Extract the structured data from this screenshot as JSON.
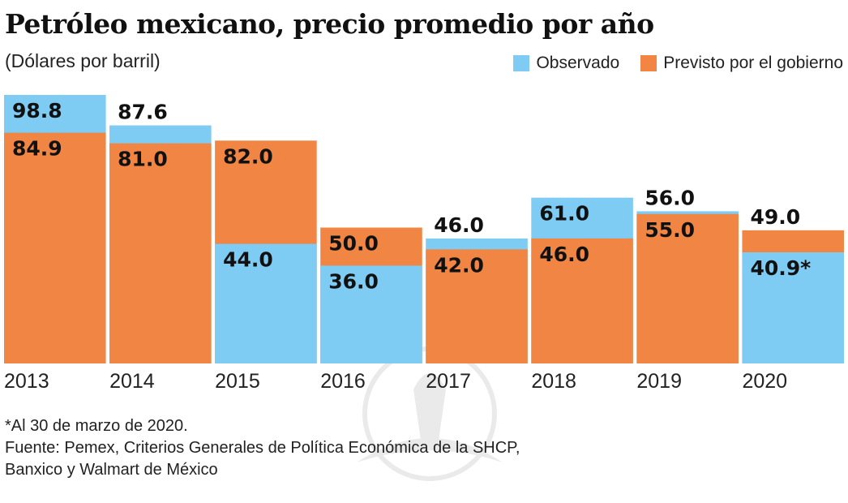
{
  "header": {
    "title": "Petróleo mexicano, precio promedio por año",
    "subtitle": "(Dólares por barril)"
  },
  "legend": [
    {
      "name": "Observado",
      "color": "#7ecbf3"
    },
    {
      "name": "Previsto por el gobierno",
      "color": "#f08544"
    }
  ],
  "notes": {
    "footnote": "*Al 30 de marzo de 2020.",
    "source_line1": "Fuente: Pemex, Criterios Generales de Política Económica de la SHCP,",
    "source_line2": "Banxico y Walmart de México"
  },
  "chart_data": {
    "type": "bar",
    "title": "Petróleo mexicano, precio promedio por año",
    "subtitle": "(Dólares por barril)",
    "xlabel": "",
    "ylabel": "Dólares por barril",
    "ylim": [
      0,
      100
    ],
    "grid": false,
    "legend_position": "top-right",
    "categories": [
      "2013",
      "2014",
      "2015",
      "2016",
      "2017",
      "2018",
      "2019",
      "2020"
    ],
    "series": [
      {
        "name": "Observado",
        "color": "#7ecbf3",
        "values": [
          98.8,
          87.6,
          44.0,
          36.0,
          46.0,
          61.0,
          56.0,
          40.9
        ],
        "labels": [
          "98.8",
          "87.6",
          "44.0",
          "36.0",
          "46.0",
          "61.0",
          "56.0",
          "40.9*"
        ]
      },
      {
        "name": "Previsto por el gobierno",
        "color": "#f08544",
        "values": [
          84.9,
          81.0,
          82.0,
          50.0,
          42.0,
          46.0,
          55.0,
          49.0
        ],
        "labels": [
          "84.9",
          "81.0",
          "82.0",
          "50.0",
          "42.0",
          "46.0",
          "55.0",
          "49.0"
        ]
      }
    ],
    "annotations": [
      "*Al 30 de marzo de 2020."
    ]
  }
}
